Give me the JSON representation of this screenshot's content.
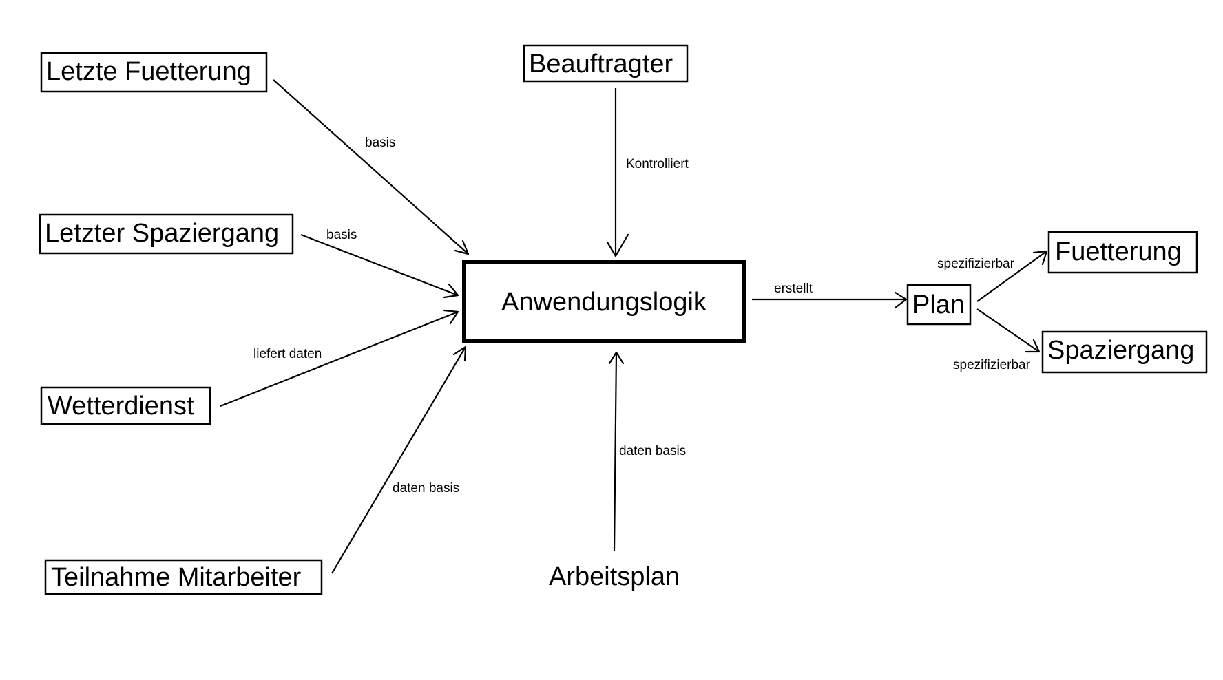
{
  "nodes": {
    "letzte_fuetterung": "Letzte Fuetterung",
    "letzter_spaziergang": "Letzter Spaziergang",
    "wetterdienst": "Wetterdienst",
    "teilnahme_mitarbeiter": "Teilnahme Mitarbeiter",
    "beauftragter": "Beauftragter",
    "anwendungslogik": "Anwendungslogik",
    "arbeitsplan": "Arbeitsplan",
    "plan": "Plan",
    "fuetterung": "Fuetterung",
    "spaziergang": "Spaziergang"
  },
  "edges": {
    "fuetterung_basis": "basis",
    "spaziergang_basis": "basis",
    "wetter_liefert": "liefert daten",
    "teilnahme_daten": "daten basis",
    "beauftragter_kontrolliert": "Kontrolliert",
    "arbeitsplan_daten": "daten basis",
    "logik_erstellt": "erstellt",
    "plan_fuetterung": "spezifizierbar",
    "plan_spaziergang": "spezifizierbar"
  }
}
